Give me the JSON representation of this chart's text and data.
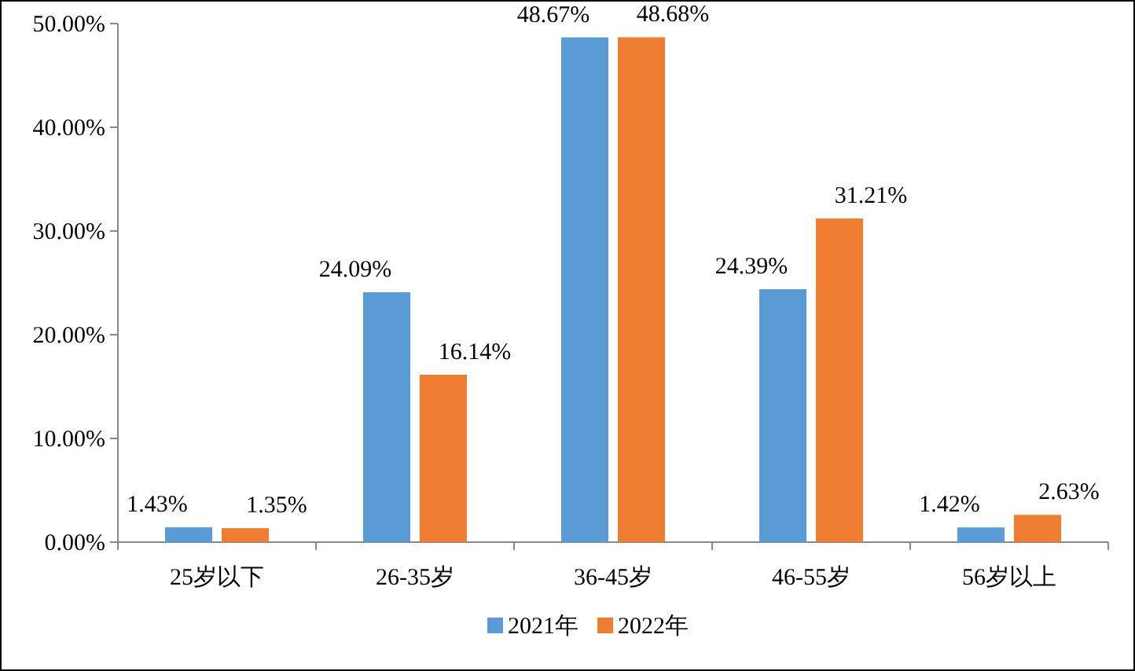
{
  "chart_data": {
    "type": "bar",
    "categories": [
      "25岁以下",
      "26-35岁",
      "36-45岁",
      "46-55岁",
      "56岁以上"
    ],
    "series": [
      {
        "name": "2021年",
        "color": "#5b9bd5",
        "values": [
          1.43,
          24.09,
          48.67,
          24.39,
          1.42
        ],
        "value_labels": [
          "1.43%",
          "24.09%",
          "48.67%",
          "24.39%",
          "1.42%"
        ]
      },
      {
        "name": "2022年",
        "color": "#ed7d31",
        "values": [
          1.35,
          16.14,
          48.68,
          31.21,
          2.63
        ],
        "value_labels": [
          "1.35%",
          "16.14%",
          "48.68%",
          "31.21%",
          "2.63%"
        ]
      }
    ],
    "ylim": [
      0,
      50
    ],
    "yticks": [
      {
        "value": 0,
        "label": "0.00%"
      },
      {
        "value": 10,
        "label": "10.00%"
      },
      {
        "value": 20,
        "label": "20.00%"
      },
      {
        "value": 30,
        "label": "30.00%"
      },
      {
        "value": 40,
        "label": "40.00%"
      },
      {
        "value": 50,
        "label": "50.00%"
      }
    ],
    "grid": false,
    "legend": "bottom"
  }
}
